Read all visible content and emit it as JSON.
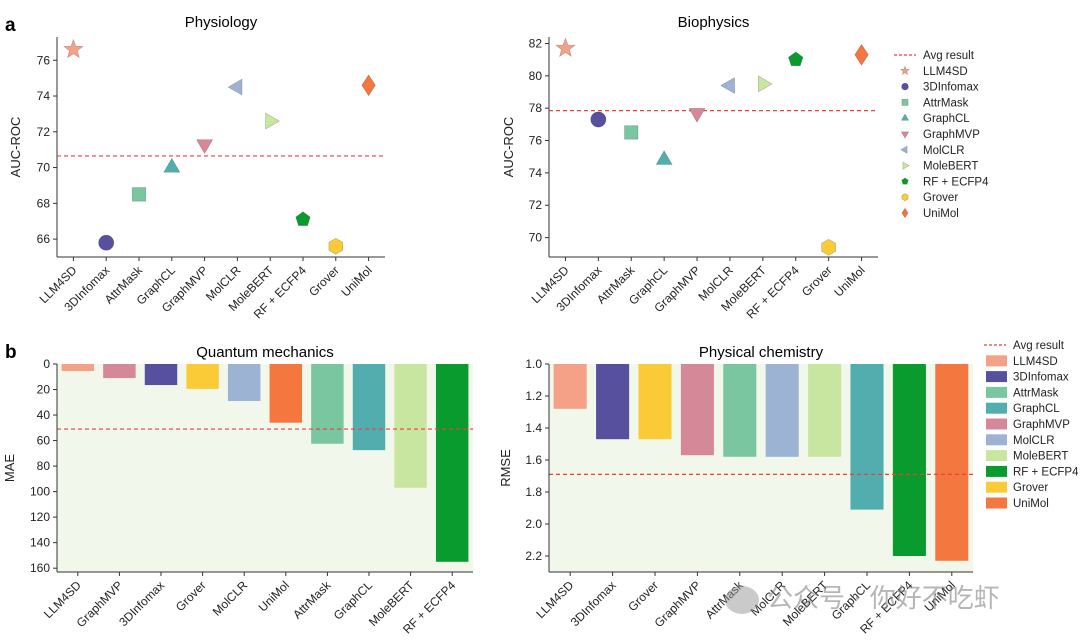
{
  "panel_labels": [
    "a",
    "b"
  ],
  "colors": {
    "LLM4SD": "#f4a187",
    "3DInfomax": "#57509f",
    "AttrMask": "#79c6a1",
    "GraphCL": "#52aeae",
    "GraphMVP": "#d58898",
    "MolCLR": "#9db3d3",
    "MoleBERT": "#c9e6a0",
    "RF + ECFP4": "#0a9b2f",
    "Grover": "#fbcb37",
    "UniMol": "#f4773f",
    "avg": "#e8423a",
    "bar_bg": "#f1f7ea"
  },
  "watermark": "公众号 · 你好不吃虾",
  "chart_data": [
    {
      "id": "physiology",
      "type": "scatter",
      "title": "Physiology",
      "xlabel": "",
      "ylabel": "AUC-ROC",
      "ylim": [
        65,
        77.3
      ],
      "yticks": [
        66,
        68,
        70,
        72,
        74,
        76
      ],
      "avg": 70.65,
      "categories": [
        "LLM4SD",
        "3DInfomax",
        "AttrMask",
        "GraphCL",
        "GraphMVP",
        "MolCLR",
        "MoleBERT",
        "RF + ECFP4",
        "Grover",
        "UniMol"
      ],
      "values": [
        76.6,
        65.8,
        68.5,
        70.0,
        71.3,
        74.5,
        72.6,
        67.1,
        65.6,
        74.6
      ],
      "markers": [
        "star",
        "circle",
        "square",
        "triangle-up",
        "triangle-down",
        "triangle-left",
        "triangle-right",
        "pentagon",
        "hexagon",
        "diamond"
      ]
    },
    {
      "id": "biophysics",
      "type": "scatter",
      "title": "Biophysics",
      "xlabel": "",
      "ylabel": "AUC-ROC",
      "ylim": [
        68.8,
        82.4
      ],
      "yticks": [
        70,
        72,
        74,
        76,
        78,
        80,
        82
      ],
      "avg": 77.85,
      "categories": [
        "LLM4SD",
        "3DInfomax",
        "AttrMask",
        "GraphCL",
        "GraphMVP",
        "MolCLR",
        "MoleBERT",
        "RF + ECFP4",
        "Grover",
        "UniMol"
      ],
      "values": [
        81.7,
        77.3,
        76.5,
        74.8,
        77.7,
        79.4,
        79.5,
        81.0,
        69.4,
        81.3
      ],
      "markers": [
        "star",
        "circle",
        "square",
        "triangle-up",
        "triangle-down",
        "triangle-left",
        "triangle-right",
        "pentagon",
        "hexagon",
        "diamond"
      ],
      "legend": {
        "position": "right",
        "entries": [
          "Avg result",
          "LLM4SD",
          "3DInfomax",
          "AttrMask",
          "GraphCL",
          "GraphMVP",
          "MolCLR",
          "MoleBERT",
          "RF + ECFP4",
          "Grover",
          "UniMol"
        ]
      }
    },
    {
      "id": "quantum",
      "type": "bar",
      "title": "Quantum mechanics",
      "xlabel": "",
      "ylabel": "MAE",
      "ylim": [
        0,
        163
      ],
      "inverted": true,
      "yticks": [
        0,
        20,
        40,
        60,
        80,
        100,
        120,
        140,
        160
      ],
      "avg": 51,
      "categories": [
        "LLM4SD",
        "GraphMVP",
        "3DInfomax",
        "Grover",
        "MolCLR",
        "UniMol",
        "AttrMask",
        "GraphCL",
        "MoleBERT",
        "RF + ECFP4"
      ],
      "values": [
        5.5,
        11,
        16.5,
        19.5,
        29,
        46,
        62.5,
        67.5,
        97,
        155
      ]
    },
    {
      "id": "physchem",
      "type": "bar",
      "title": "Physical chemistry",
      "xlabel": "",
      "ylabel": "RMSE",
      "ylim": [
        1.0,
        2.3
      ],
      "inverted": true,
      "yticks": [
        "1.0",
        "1.2",
        "1.4",
        "1.6",
        "1.8",
        "2.0",
        "2.2"
      ],
      "avg": 1.69,
      "categories": [
        "LLM4SD",
        "3DInfomax",
        "Grover",
        "GraphMVP",
        "AttrMask",
        "MolCLR",
        "MoleBERT",
        "GraphCL",
        "RF + ECFP4",
        "UniMol"
      ],
      "values": [
        1.28,
        1.47,
        1.47,
        1.57,
        1.58,
        1.58,
        1.58,
        1.91,
        2.2,
        2.23
      ],
      "legend": {
        "position": "right",
        "entries": [
          "Avg result",
          "LLM4SD",
          "3DInfomax",
          "AttrMask",
          "GraphCL",
          "GraphMVP",
          "MolCLR",
          "MoleBERT",
          "RF + ECFP4",
          "Grover",
          "UniMol"
        ]
      }
    }
  ]
}
